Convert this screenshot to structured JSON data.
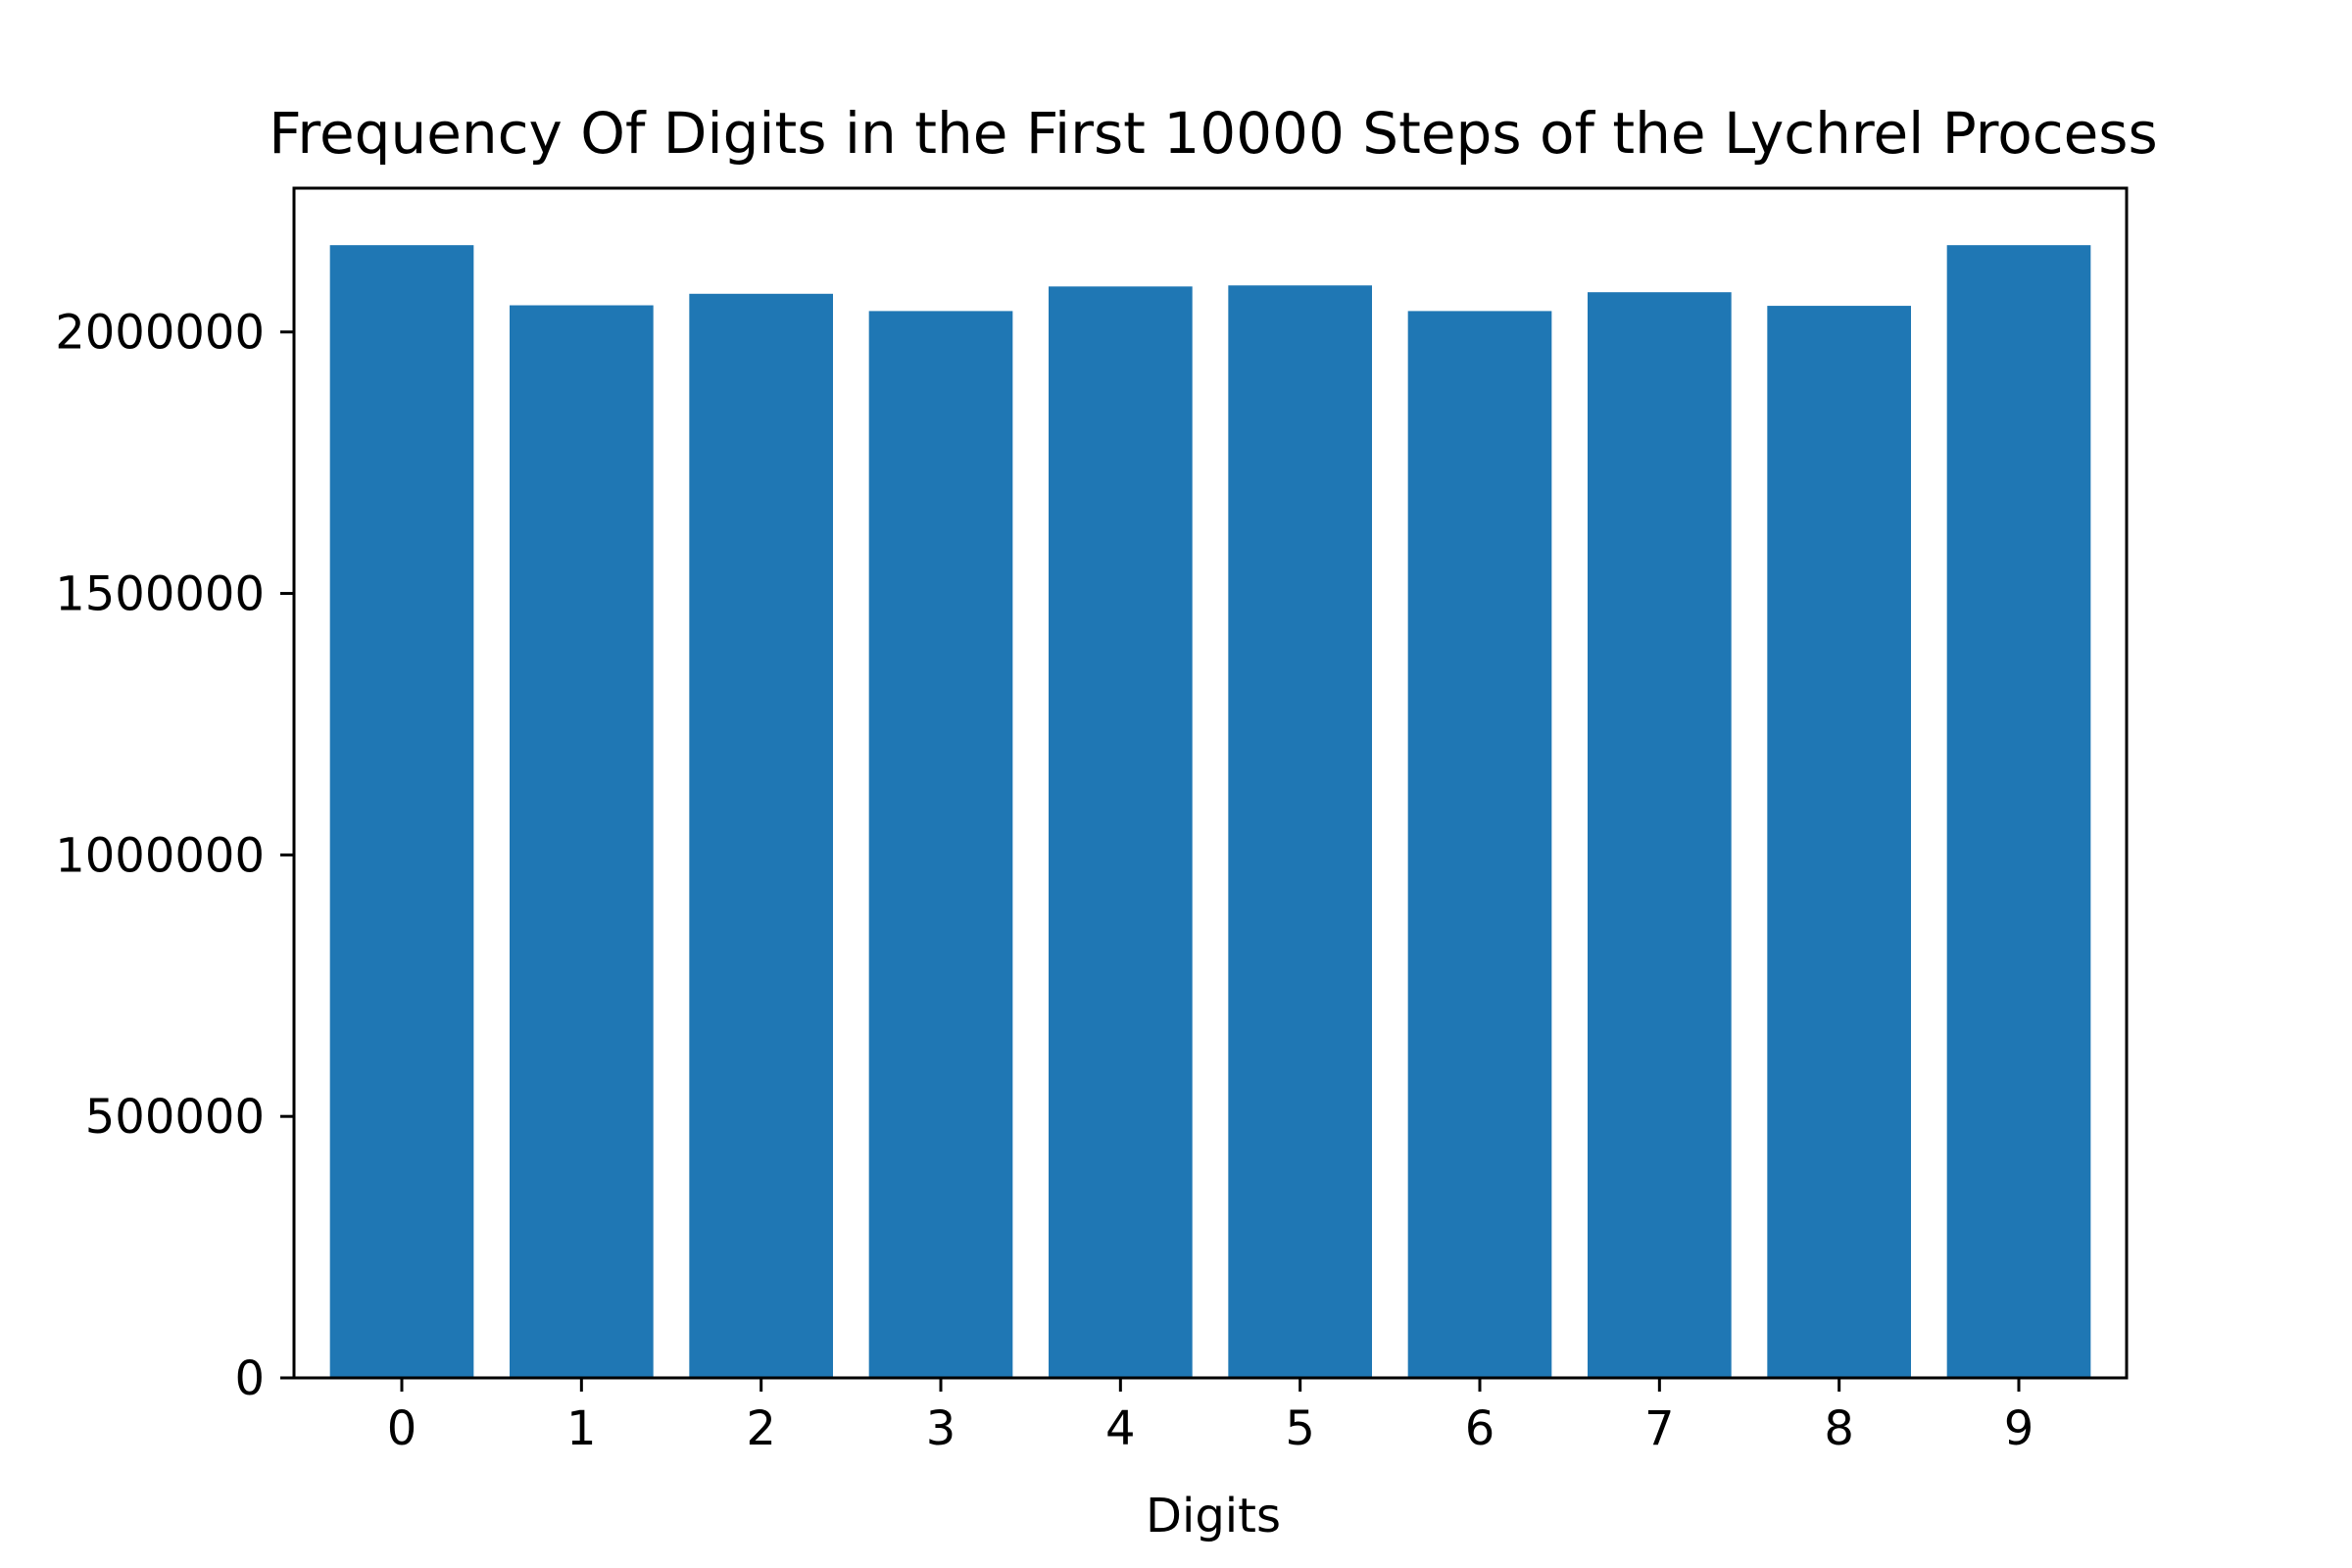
{
  "chart_data": {
    "type": "bar",
    "title": "Frequency Of Digits in the First 10000 Steps of the Lychrel Process",
    "xlabel": "Digits",
    "ylabel": "",
    "categories": [
      "0",
      "1",
      "2",
      "3",
      "4",
      "5",
      "6",
      "7",
      "8",
      "9"
    ],
    "values": [
      2166000,
      2051000,
      2073000,
      2040000,
      2087000,
      2089000,
      2040000,
      2076000,
      2050000,
      2166000
    ],
    "ylim": [
      0,
      2275000
    ],
    "yticks": [
      0,
      500000,
      1000000,
      1500000,
      2000000
    ],
    "ytick_labels": [
      "0",
      "500000",
      "1000000",
      "1500000",
      "2000000"
    ],
    "bar_color": "#1f77b4",
    "grid": false,
    "legend": "none"
  }
}
